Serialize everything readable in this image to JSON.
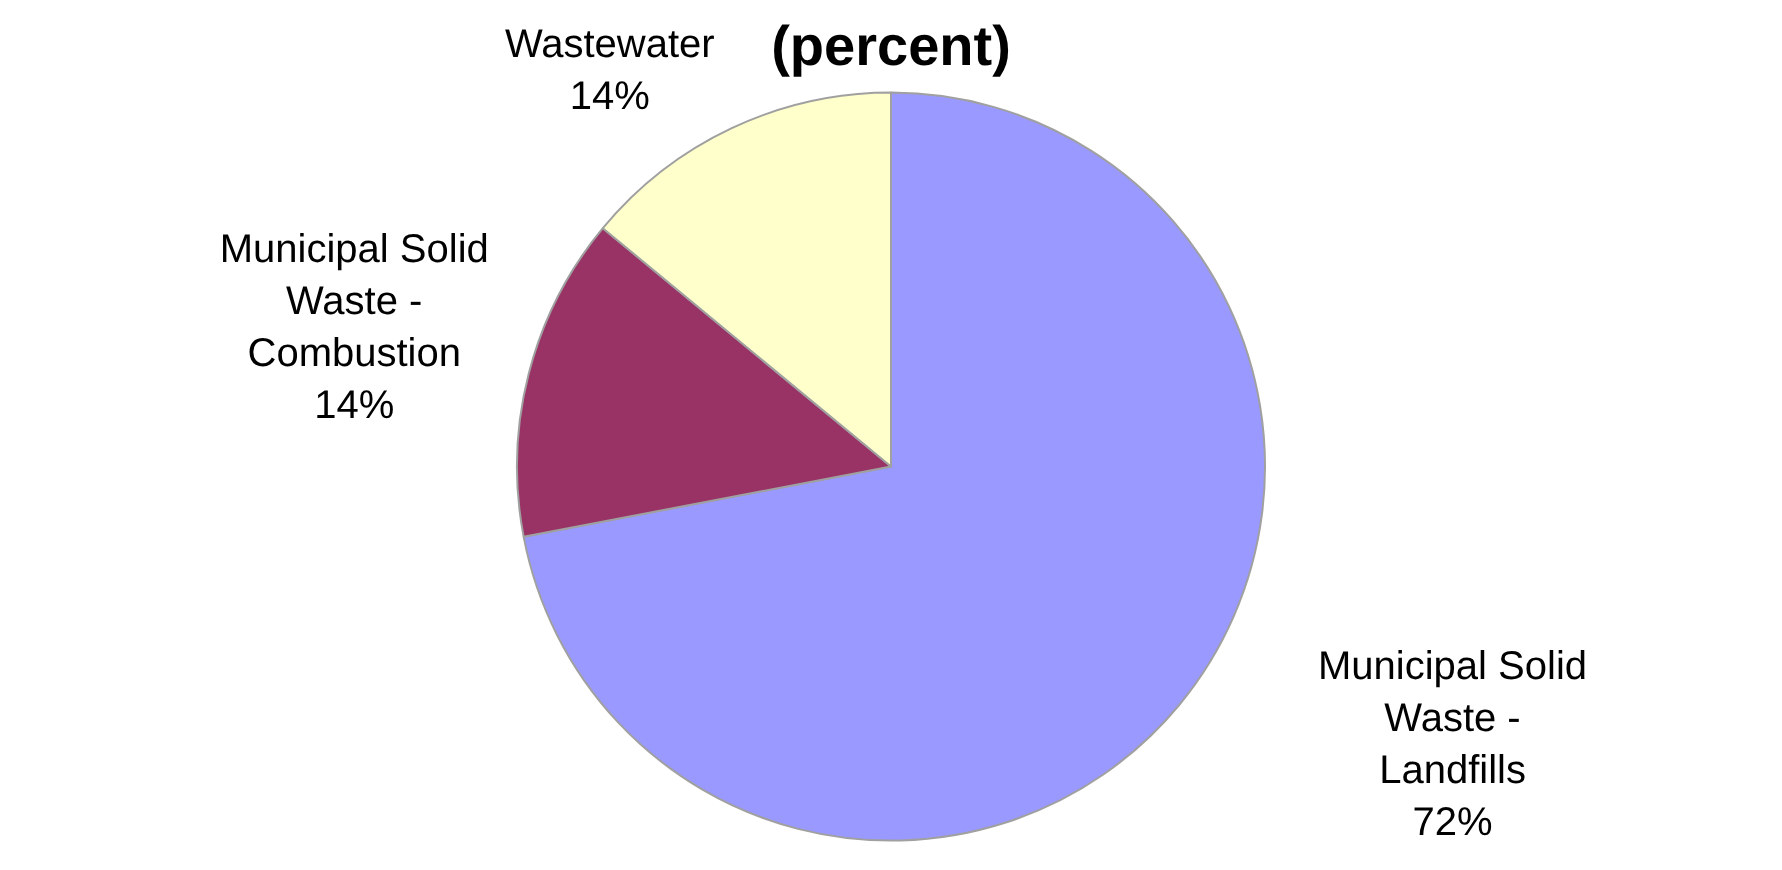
{
  "chart_data": {
    "type": "pie",
    "title": "(percent)",
    "categories": [
      "Municipal Solid Waste - Landfills",
      "Municipal Solid Waste - Combustion",
      "Wastewater"
    ],
    "values": [
      72,
      14,
      14
    ],
    "value_labels": [
      "72%",
      "14%",
      "14%"
    ],
    "colors": [
      "#9999ff",
      "#993366",
      "#ffffcc"
    ],
    "legend": false
  }
}
